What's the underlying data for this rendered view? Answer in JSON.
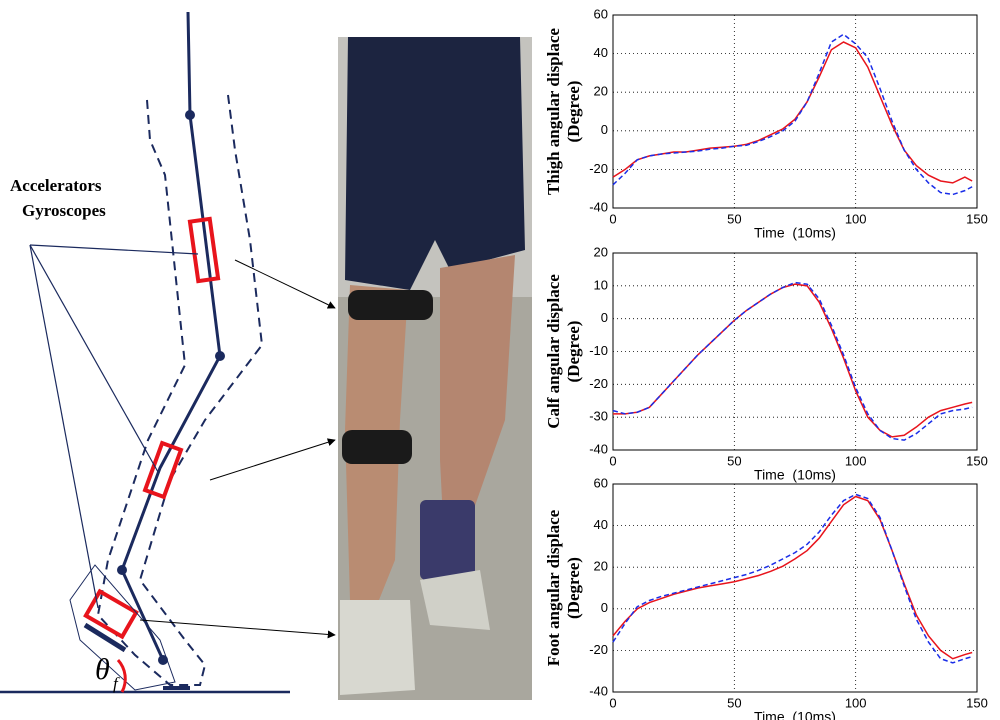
{
  "diagram": {
    "labels": [
      "Accelerators",
      "Gyroscopes"
    ],
    "angle_symbol": "θ",
    "angle_subscript": "f"
  },
  "chart_data": [
    {
      "type": "line",
      "y_label_lines": [
        "Thigh angular displace",
        "(Degree)"
      ],
      "x_label": "Time  (10ms)",
      "x": [
        0,
        5,
        10,
        15,
        20,
        25,
        30,
        35,
        40,
        45,
        50,
        55,
        60,
        65,
        70,
        75,
        80,
        85,
        90,
        95,
        100,
        105,
        110,
        115,
        120,
        125,
        130,
        135,
        140,
        145,
        148
      ],
      "xlim": [
        0,
        150
      ],
      "xticks": [
        0,
        50,
        100,
        150
      ],
      "ylim": [
        -40,
        60
      ],
      "yticks": [
        -40,
        -20,
        0,
        20,
        40,
        60
      ],
      "grid": true,
      "series": [
        {
          "color": "#e8141c",
          "linestyle": "solid",
          "values": [
            -24,
            -20,
            -15,
            -13,
            -12,
            -11,
            -11,
            -10,
            -9,
            -8.5,
            -8,
            -7,
            -5,
            -2,
            1,
            6,
            15,
            28,
            42,
            46,
            43,
            33,
            18,
            3,
            -10,
            -18,
            -23,
            -26,
            -27,
            -24,
            -26
          ]
        },
        {
          "color": "#1a2ee8",
          "linestyle": "dashed",
          "values": [
            -28,
            -22,
            -15,
            -13,
            -12,
            -11.5,
            -11,
            -10.5,
            -9.5,
            -9,
            -8,
            -7.5,
            -5.5,
            -3,
            0,
            5,
            15,
            30,
            46,
            50,
            45,
            38,
            22,
            5,
            -10,
            -20,
            -27,
            -32,
            -33,
            -31,
            -29
          ]
        }
      ]
    },
    {
      "type": "line",
      "y_label_lines": [
        "Calf angular displace",
        "(Degree)"
      ],
      "x_label": "Time  (10ms)",
      "x": [
        0,
        5,
        10,
        15,
        20,
        25,
        30,
        35,
        40,
        45,
        50,
        55,
        60,
        65,
        70,
        75,
        80,
        85,
        90,
        95,
        100,
        105,
        110,
        115,
        120,
        125,
        130,
        135,
        140,
        145,
        148
      ],
      "xlim": [
        0,
        150
      ],
      "xticks": [
        0,
        50,
        100,
        150
      ],
      "ylim": [
        -40,
        20
      ],
      "yticks": [
        -40,
        -30,
        -20,
        -10,
        0,
        10,
        20
      ],
      "grid": true,
      "series": [
        {
          "color": "#e8141c",
          "linestyle": "solid",
          "values": [
            -29,
            -29,
            -28.5,
            -27,
            -23,
            -19,
            -15,
            -11,
            -7.5,
            -4,
            -0.5,
            2.5,
            5,
            7.5,
            9.5,
            10.5,
            10,
            5,
            -3,
            -12,
            -22,
            -30,
            -34,
            -36,
            -35.5,
            -33,
            -30,
            -28,
            -27,
            -26,
            -25.5
          ]
        },
        {
          "color": "#1a2ee8",
          "linestyle": "dashed",
          "values": [
            -28,
            -29,
            -28.5,
            -27,
            -23,
            -19,
            -15,
            -11,
            -7.5,
            -4,
            -0.5,
            2.5,
            5,
            7.5,
            9.5,
            11,
            10.5,
            6,
            -2,
            -11,
            -21,
            -29,
            -34,
            -36.5,
            -37,
            -35,
            -32,
            -29,
            -28,
            -27.5,
            -27
          ]
        }
      ]
    },
    {
      "type": "line",
      "y_label_lines": [
        "Foot angular displace",
        "(Degree)"
      ],
      "x_label": "Time  (10ms)",
      "x": [
        0,
        5,
        10,
        15,
        20,
        25,
        30,
        35,
        40,
        45,
        50,
        55,
        60,
        65,
        70,
        75,
        80,
        85,
        90,
        95,
        100,
        105,
        110,
        115,
        120,
        125,
        130,
        135,
        140,
        145,
        148
      ],
      "xlim": [
        0,
        150
      ],
      "xticks": [
        0,
        50,
        100,
        150
      ],
      "ylim": [
        -40,
        60
      ],
      "yticks": [
        -40,
        -20,
        0,
        20,
        40,
        60
      ],
      "grid": true,
      "series": [
        {
          "color": "#e8141c",
          "linestyle": "solid",
          "values": [
            -13,
            -6,
            0,
            3,
            5,
            7,
            8.5,
            10,
            11,
            12,
            13,
            14.5,
            16,
            18,
            20.5,
            24,
            28,
            34,
            42,
            50,
            54,
            52,
            43,
            28,
            12,
            -3,
            -13,
            -20,
            -24,
            -22,
            -21
          ]
        },
        {
          "color": "#1a2ee8",
          "linestyle": "dashed",
          "values": [
            -16,
            -7,
            1,
            4,
            6,
            7.5,
            9,
            10.5,
            12,
            13.5,
            15,
            16.5,
            18.5,
            21,
            24,
            27,
            31,
            37,
            45,
            52,
            55,
            53,
            44,
            28,
            11,
            -5,
            -16,
            -24,
            -26,
            -24,
            -23
          ]
        }
      ]
    }
  ]
}
